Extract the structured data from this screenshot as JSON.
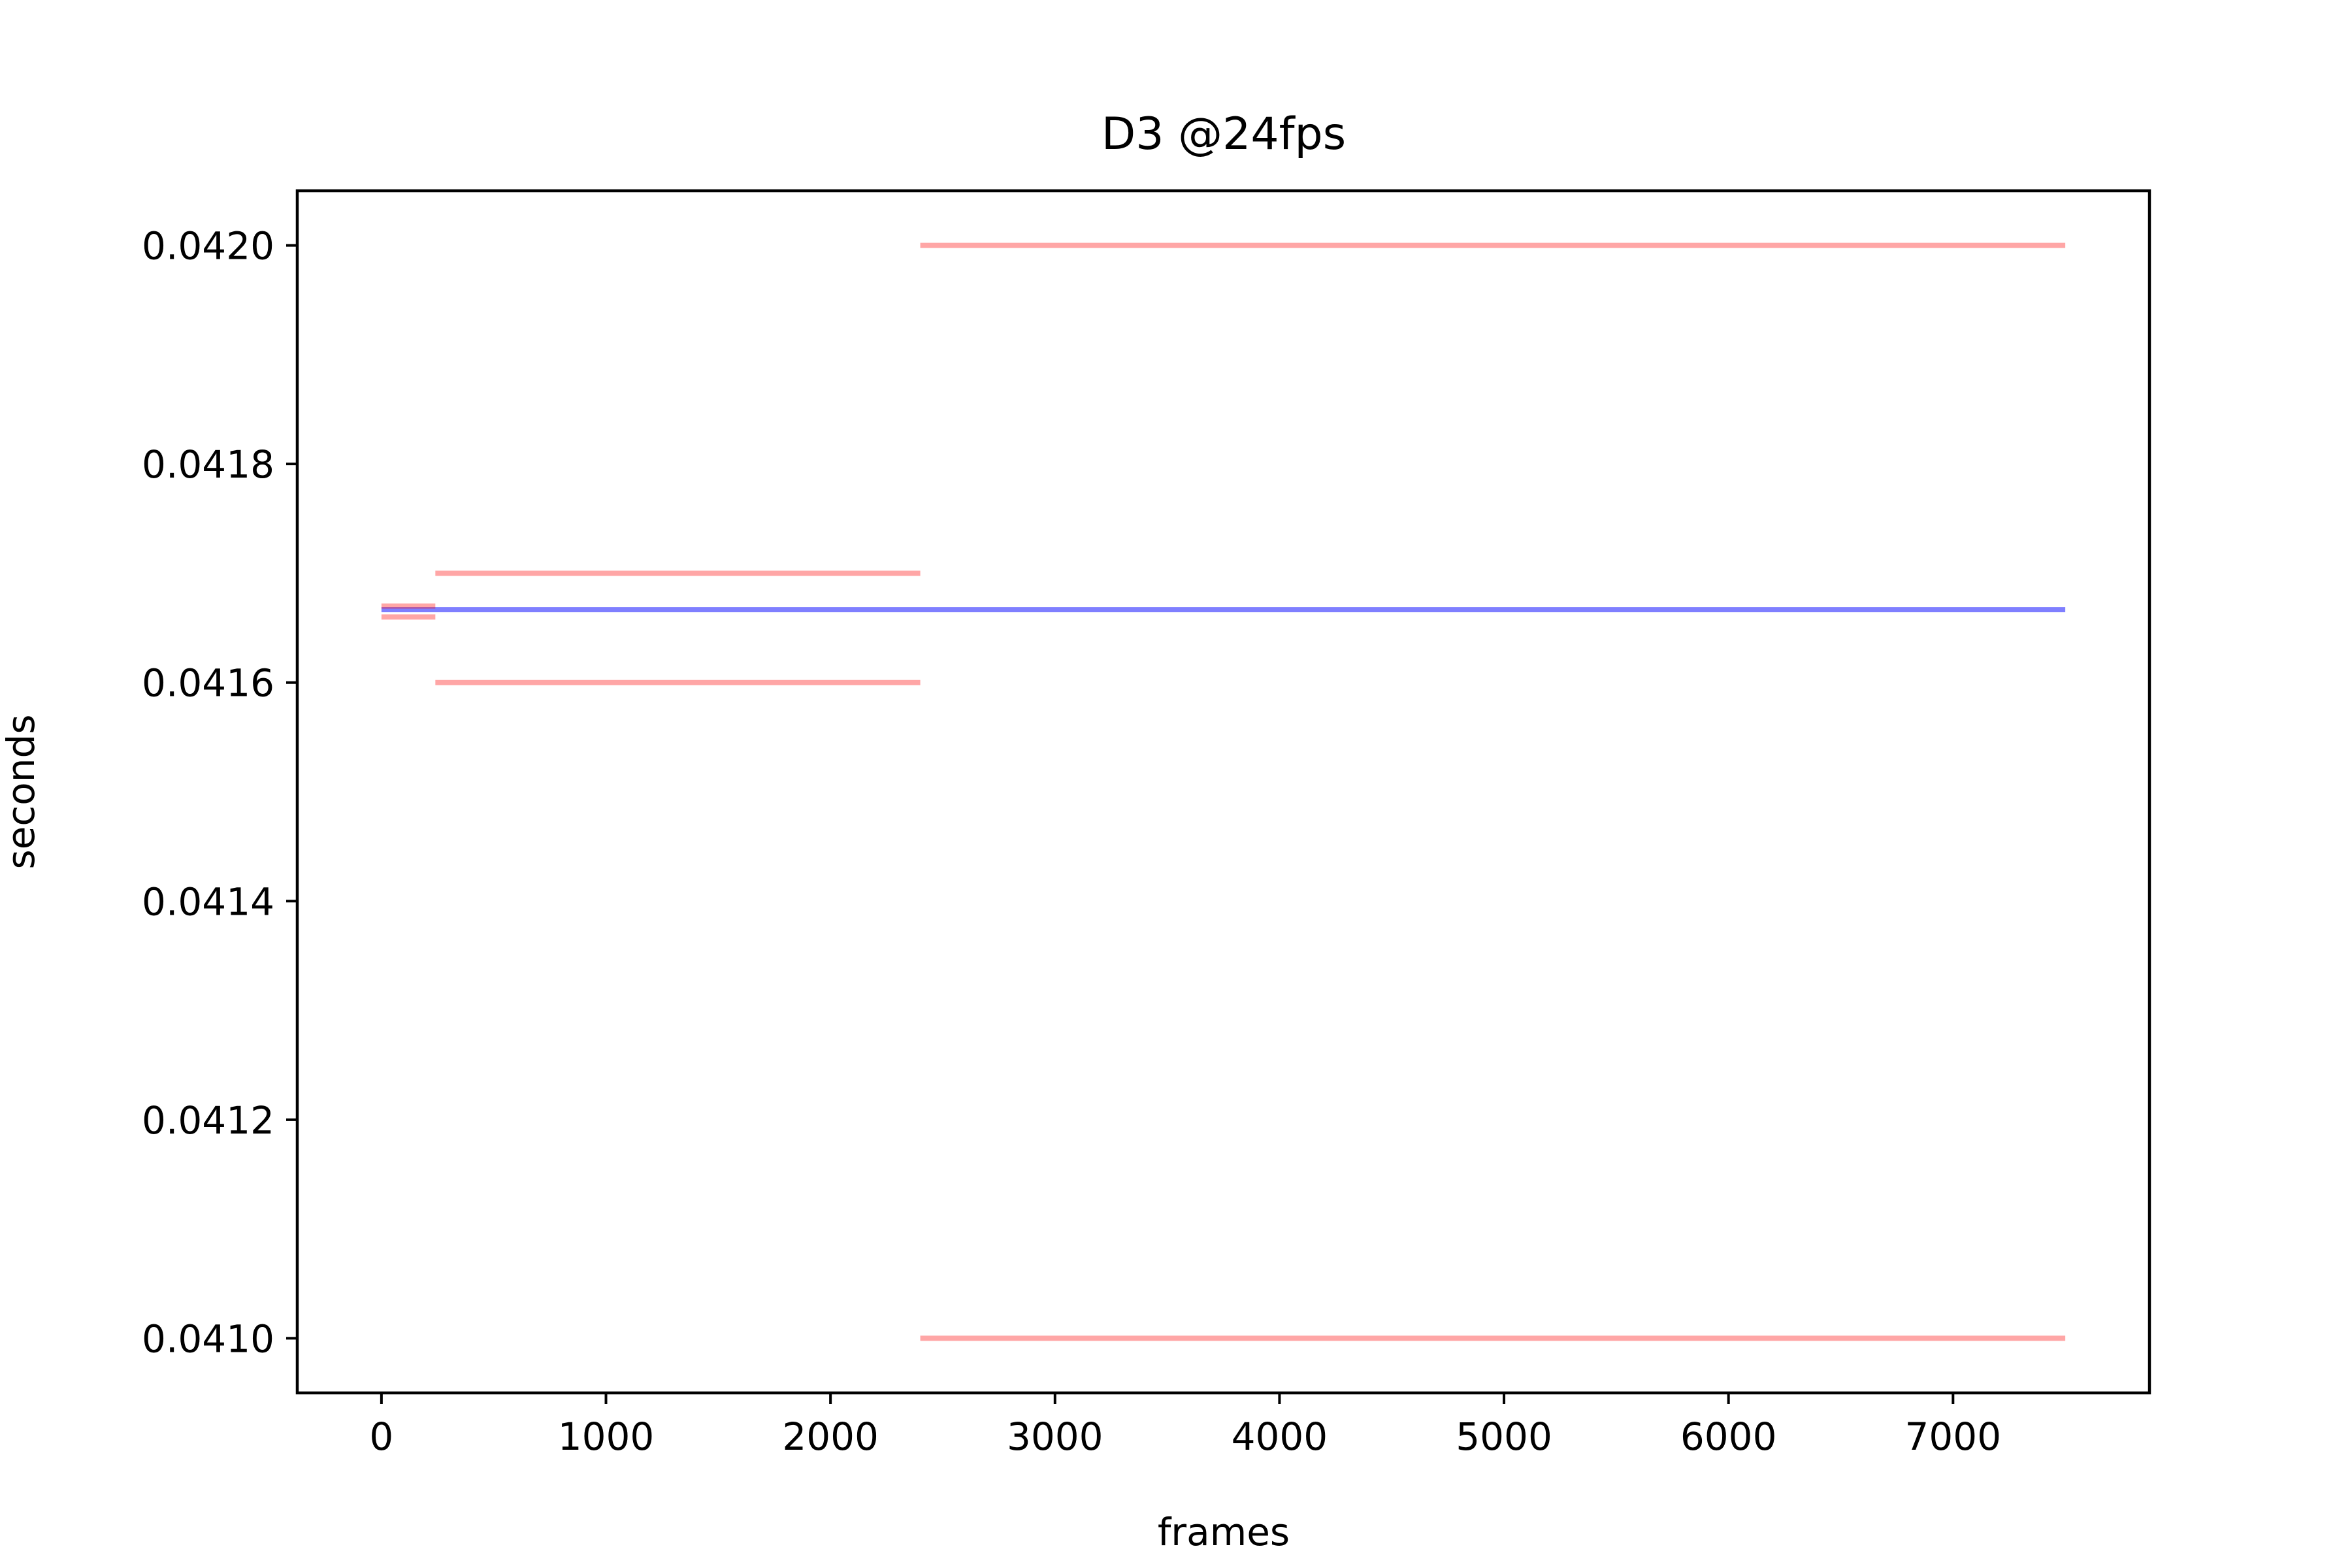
{
  "chart_data": {
    "type": "line",
    "title": "D3 @24fps",
    "xlabel": "frames",
    "ylabel": "seconds",
    "xlim": [
      -375,
      7875
    ],
    "ylim": [
      0.04095,
      0.04205
    ],
    "xticks": [
      0,
      1000,
      2000,
      3000,
      4000,
      5000,
      6000,
      7000
    ],
    "xtick_labels": [
      "0",
      "1000",
      "2000",
      "3000",
      "4000",
      "5000",
      "6000",
      "7000"
    ],
    "yticks": [
      0.041,
      0.0412,
      0.0414,
      0.0416,
      0.0418,
      0.042
    ],
    "ytick_labels": [
      "0.0410",
      "0.0412",
      "0.0414",
      "0.0416",
      "0.0418",
      "0.0420"
    ],
    "grid": false,
    "series": [
      {
        "color": "#0000ff",
        "opacity": 0.5,
        "segments": [
          {
            "x": [
              0,
              7500
            ],
            "y": 0.0416667
          }
        ]
      },
      {
        "color": "#ff0000",
        "opacity": 0.35,
        "segments": [
          {
            "x": [
              0,
              240
            ],
            "y": 0.04167
          },
          {
            "x": [
              0,
              240
            ],
            "y": 0.04166
          },
          {
            "x": [
              240,
              2400
            ],
            "y": 0.0417
          },
          {
            "x": [
              240,
              2400
            ],
            "y": 0.0416
          },
          {
            "x": [
              2400,
              7500
            ],
            "y": 0.042
          },
          {
            "x": [
              2400,
              7500
            ],
            "y": 0.041
          }
        ]
      }
    ]
  }
}
